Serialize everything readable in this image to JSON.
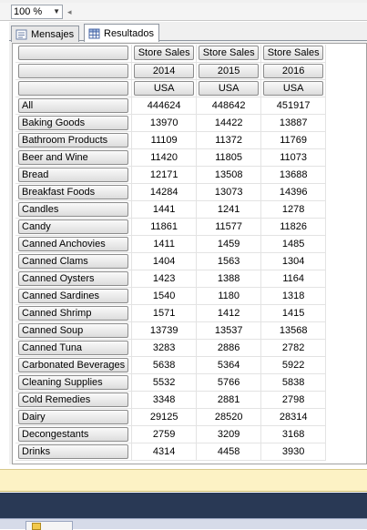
{
  "toolbar": {
    "zoom": "100 %"
  },
  "tabs": [
    {
      "label": "Mensajes",
      "active": false
    },
    {
      "label": "Resultados",
      "active": true
    }
  ],
  "headers": {
    "measure": [
      "Store Sales",
      "Store Sales",
      "Store Sales"
    ],
    "year": [
      "2014",
      "2015",
      "2016"
    ],
    "country": [
      "USA",
      "USA",
      "USA"
    ]
  },
  "rows": [
    {
      "label": "All",
      "values": [
        "444624",
        "448642",
        "451917"
      ]
    },
    {
      "label": "Baking Goods",
      "values": [
        "13970",
        "14422",
        "13887"
      ]
    },
    {
      "label": "Bathroom Products",
      "values": [
        "11109",
        "11372",
        "11769"
      ]
    },
    {
      "label": "Beer and Wine",
      "values": [
        "11420",
        "11805",
        "11073"
      ]
    },
    {
      "label": "Bread",
      "values": [
        "12171",
        "13508",
        "13688"
      ]
    },
    {
      "label": "Breakfast Foods",
      "values": [
        "14284",
        "13073",
        "14396"
      ]
    },
    {
      "label": "Candles",
      "values": [
        "1441",
        "1241",
        "1278"
      ]
    },
    {
      "label": "Candy",
      "values": [
        "11861",
        "11577",
        "11826"
      ]
    },
    {
      "label": "Canned Anchovies",
      "values": [
        "1411",
        "1459",
        "1485"
      ]
    },
    {
      "label": "Canned Clams",
      "values": [
        "1404",
        "1563",
        "1304"
      ]
    },
    {
      "label": "Canned Oysters",
      "values": [
        "1423",
        "1388",
        "1164"
      ]
    },
    {
      "label": "Canned Sardines",
      "values": [
        "1540",
        "1180",
        "1318"
      ]
    },
    {
      "label": "Canned Shrimp",
      "values": [
        "1571",
        "1412",
        "1415"
      ]
    },
    {
      "label": "Canned Soup",
      "values": [
        "13739",
        "13537",
        "13568"
      ]
    },
    {
      "label": "Canned Tuna",
      "values": [
        "3283",
        "2886",
        "2782"
      ]
    },
    {
      "label": "Carbonated Beverages",
      "values": [
        "5638",
        "5364",
        "5922"
      ]
    },
    {
      "label": "Cleaning Supplies",
      "values": [
        "5532",
        "5766",
        "5838"
      ]
    },
    {
      "label": "Cold Remedies",
      "values": [
        "3348",
        "2881",
        "2798"
      ]
    },
    {
      "label": "Dairy",
      "values": [
        "29125",
        "28520",
        "28314"
      ]
    },
    {
      "label": "Decongestants",
      "values": [
        "2759",
        "3209",
        "3168"
      ]
    },
    {
      "label": "Drinks",
      "values": [
        "4314",
        "4458",
        "3930"
      ]
    }
  ]
}
